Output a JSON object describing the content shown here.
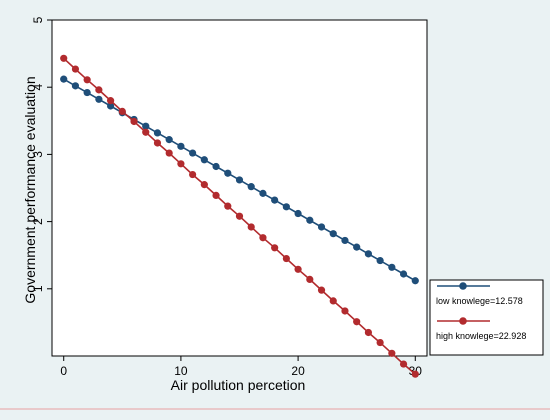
{
  "chart_data": {
    "type": "line",
    "xlabel": "Air pollution percetion",
    "ylabel": "Government performance evaluation",
    "xlim": [
      -1,
      31
    ],
    "ylim": [
      0,
      5
    ],
    "xticks": [
      0,
      10,
      20,
      30
    ],
    "yticks": [
      1,
      2,
      3,
      4,
      5
    ],
    "grid": false,
    "legend_position": "bottom-right",
    "series": [
      {
        "name": "low knowlege=12.578",
        "color": "#1f4e79",
        "x": [
          0,
          1,
          2,
          3,
          4,
          5,
          6,
          7,
          8,
          9,
          10,
          11,
          12,
          13,
          14,
          15,
          16,
          17,
          18,
          19,
          20,
          21,
          22,
          23,
          24,
          25,
          26,
          27,
          28,
          29,
          30
        ],
        "values": [
          4.12,
          4.02,
          3.92,
          3.82,
          3.72,
          3.62,
          3.52,
          3.42,
          3.32,
          3.22,
          3.12,
          3.02,
          2.92,
          2.82,
          2.72,
          2.62,
          2.52,
          2.42,
          2.32,
          2.22,
          2.12,
          2.02,
          1.92,
          1.82,
          1.72,
          1.62,
          1.52,
          1.42,
          1.32,
          1.22,
          1.12
        ]
      },
      {
        "name": "high knowlege=22.928",
        "color": "#b22b2e",
        "x": [
          0,
          1,
          2,
          3,
          4,
          5,
          6,
          7,
          8,
          9,
          10,
          11,
          12,
          13,
          14,
          15,
          16,
          17,
          18,
          19,
          20,
          21,
          22,
          23,
          24,
          25,
          26,
          27,
          28,
          29,
          30
        ],
        "values": [
          4.43,
          4.27,
          4.11,
          3.96,
          3.8,
          3.64,
          3.49,
          3.33,
          3.17,
          3.02,
          2.86,
          2.7,
          2.55,
          2.39,
          2.23,
          2.08,
          1.92,
          1.76,
          1.61,
          1.45,
          1.29,
          1.14,
          0.98,
          0.82,
          0.67,
          0.51,
          0.35,
          0.2,
          0.04,
          -0.12,
          -0.27
        ]
      }
    ]
  }
}
